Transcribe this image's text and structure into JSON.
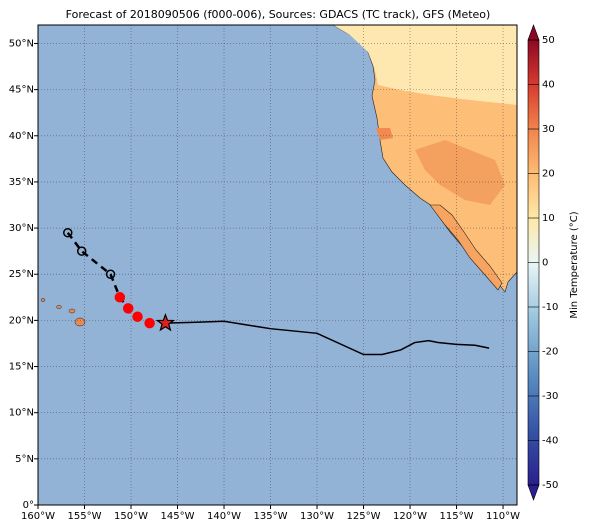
{
  "map": {
    "title": "Forecast of 2018090506 (f000-006), Sources: GDACS (TC track), GFS (Meteo)",
    "lon_range": [
      -160,
      -108.5
    ],
    "lat_range": [
      0,
      52
    ],
    "lon_ticks": [
      {
        "value": -160,
        "label": "160°W"
      },
      {
        "value": -155,
        "label": "155°W"
      },
      {
        "value": -150,
        "label": "150°W"
      },
      {
        "value": -145,
        "label": "145°W"
      },
      {
        "value": -140,
        "label": "140°W"
      },
      {
        "value": -135,
        "label": "135°W"
      },
      {
        "value": -130,
        "label": "130°W"
      },
      {
        "value": -125,
        "label": "125°W"
      },
      {
        "value": -120,
        "label": "120°W"
      },
      {
        "value": -115,
        "label": "115°W"
      },
      {
        "value": -110,
        "label": "110°W"
      }
    ],
    "lat_ticks": [
      {
        "value": 0,
        "label": "0°"
      },
      {
        "value": 5,
        "label": "5°N"
      },
      {
        "value": 10,
        "label": "10°N"
      },
      {
        "value": 15,
        "label": "15°N"
      },
      {
        "value": 20,
        "label": "20°N"
      },
      {
        "value": 25,
        "label": "25°N"
      },
      {
        "value": 30,
        "label": "30°N"
      },
      {
        "value": 35,
        "label": "35°N"
      },
      {
        "value": 40,
        "label": "40°N"
      },
      {
        "value": 45,
        "label": "45°N"
      },
      {
        "value": 50,
        "label": "50°N"
      }
    ],
    "colorbar": {
      "label": "Min Temperature (°C)",
      "range": [
        -50,
        50
      ],
      "ticks": [
        50,
        40,
        30,
        20,
        10,
        0,
        -10,
        -20,
        -30,
        -40,
        -50
      ]
    },
    "past_track": [
      {
        "lon": -156.8,
        "lat": 29.5
      },
      {
        "lon": -155.3,
        "lat": 27.5
      },
      {
        "lon": -152.2,
        "lat": 25.0
      },
      {
        "lon": -151.2,
        "lat": 22.5
      },
      {
        "lon": -150.3,
        "lat": 21.3
      },
      {
        "lon": -149.3,
        "lat": 20.4
      },
      {
        "lon": -148.0,
        "lat": 19.7
      }
    ],
    "current_position": {
      "lon": -146.3,
      "lat": 19.7
    },
    "forecast_track": [
      {
        "lon": -146.3,
        "lat": 19.7
      },
      {
        "lon": -143,
        "lat": 19.8
      },
      {
        "lon": -140,
        "lat": 19.9
      },
      {
        "lon": -135,
        "lat": 19.1
      },
      {
        "lon": -130,
        "lat": 18.6
      },
      {
        "lon": -125,
        "lat": 16.3
      },
      {
        "lon": -123,
        "lat": 16.3
      },
      {
        "lon": -121,
        "lat": 16.8
      },
      {
        "lon": -119.5,
        "lat": 17.6
      },
      {
        "lon": -118,
        "lat": 17.8
      },
      {
        "lon": -117,
        "lat": 17.6
      },
      {
        "lon": -115,
        "lat": 17.4
      },
      {
        "lon": -113,
        "lat": 17.3
      },
      {
        "lon": -111.5,
        "lat": 17.0
      }
    ]
  }
}
